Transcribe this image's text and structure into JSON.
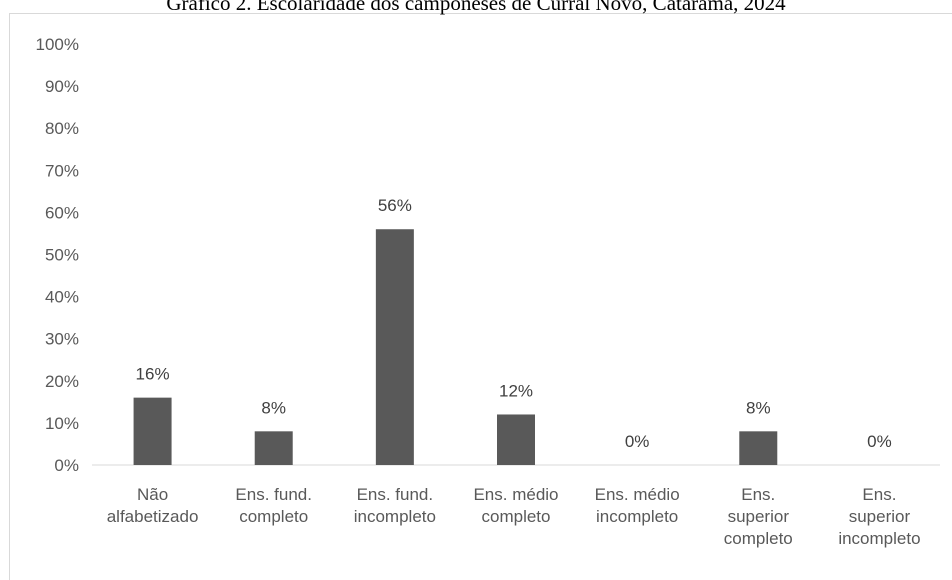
{
  "chart_data": {
    "type": "bar",
    "title": "Gráfico 2. Escolaridade dos camponeses de Curral Novo, Catarama, 2024",
    "categories": [
      [
        "Não",
        "alfabetizado"
      ],
      [
        "Ens. fund.",
        "completo"
      ],
      [
        "Ens. fund.",
        "incompleto"
      ],
      [
        "Ens. médio",
        "completo"
      ],
      [
        "Ens. médio",
        "incompleto"
      ],
      [
        "Ens.",
        "superior",
        "completo"
      ],
      [
        "Ens.",
        "superior",
        "incompleto"
      ]
    ],
    "values": [
      16,
      8,
      56,
      12,
      0,
      8,
      0
    ],
    "data_labels": [
      "16%",
      "8%",
      "56%",
      "12%",
      "0%",
      "8%",
      "0%"
    ],
    "y_ticks": [
      "0%",
      "10%",
      "20%",
      "30%",
      "40%",
      "50%",
      "60%",
      "70%",
      "80%",
      "90%",
      "100%"
    ],
    "ylim": [
      0,
      100
    ],
    "xlabel": "",
    "ylabel": "",
    "grid": false,
    "legend": "none",
    "bar_color": "#595959"
  }
}
